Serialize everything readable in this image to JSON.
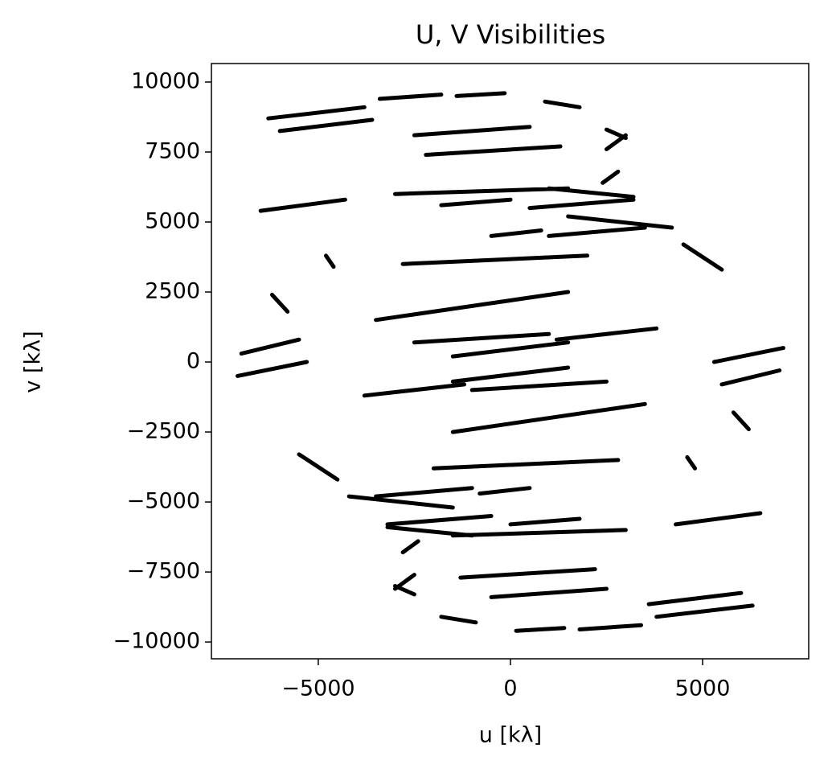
{
  "chart_data": {
    "type": "line",
    "title": "U, V Visibilities",
    "x_label": "u [kλ]",
    "y_label": "v [kλ]",
    "color": "#000000",
    "xlim": [
      -7780,
      7760
    ],
    "ylim": [
      -10600,
      10660
    ],
    "xticks": [
      {
        "value": -5000,
        "label": "−5000"
      },
      0,
      5000
    ],
    "yticks": [
      {
        "value": -10000,
        "label": "−10000"
      },
      {
        "value": -7500,
        "label": "−7500"
      },
      {
        "value": -5000,
        "label": "−5000"
      },
      {
        "value": -2500,
        "label": "−2500"
      },
      0,
      2500,
      5000,
      7500,
      10000
    ],
    "x": [
      -6300,
      -3800,
      null,
      -6000,
      -3600,
      null,
      -3400,
      -1800,
      null,
      -1400,
      -150,
      null,
      -2500,
      500,
      null,
      -2200,
      1300,
      null,
      900,
      1800,
      null,
      2500,
      3000,
      null,
      -6500,
      -4300,
      null,
      -7000,
      -5500,
      null,
      -7100,
      -5300,
      null,
      -4800,
      -4600,
      null,
      -6200,
      -5800,
      null,
      -3000,
      1500,
      null,
      1000,
      3200,
      null,
      1500,
      4200,
      null,
      -2800,
      2000,
      null,
      -3500,
      1500,
      null,
      -1500,
      1500,
      null,
      -1000,
      2500,
      null,
      -3800,
      -1200,
      null,
      -5500,
      -4500,
      null,
      -3500,
      -1000,
      null,
      -3200,
      -500,
      null,
      -2800,
      -2400,
      null,
      -3000,
      -2500,
      null,
      -500,
      800,
      null,
      -1800,
      0,
      null,
      6300,
      3800,
      null,
      6000,
      3600,
      null,
      3400,
      1800,
      null,
      1400,
      150,
      null,
      2500,
      -500,
      null,
      2200,
      -1300,
      null,
      -900,
      -1800,
      null,
      -2500,
      -3000,
      null,
      6500,
      4300,
      null,
      7000,
      5500,
      null,
      7100,
      5300,
      null,
      4800,
      4600,
      null,
      6200,
      5800,
      null,
      3000,
      -1500,
      null,
      -1000,
      -3200,
      null,
      -1500,
      -4200,
      null,
      2800,
      -2000,
      null,
      3500,
      -1500,
      null,
      1500,
      -1500,
      null,
      1000,
      -2500,
      null,
      3800,
      1200,
      null,
      5500,
      4500,
      null,
      3500,
      1000,
      null,
      3200,
      500,
      null,
      2800,
      2400,
      null,
      3000,
      2500,
      null,
      500,
      -800,
      null,
      1800,
      0
    ],
    "y": [
      8700,
      9100,
      null,
      8250,
      8650,
      null,
      9400,
      9550,
      null,
      9500,
      9600,
      null,
      8100,
      8400,
      null,
      7400,
      7700,
      null,
      9300,
      9100,
      null,
      8300,
      8000,
      null,
      5400,
      5800,
      null,
      300,
      800,
      null,
      -500,
      0,
      null,
      3800,
      3400,
      null,
      2400,
      1800,
      null,
      6000,
      6200,
      null,
      6200,
      5900,
      null,
      5200,
      4800,
      null,
      3500,
      3800,
      null,
      1500,
      2500,
      null,
      200,
      700,
      null,
      -1000,
      -700,
      null,
      -1200,
      -800,
      null,
      -3300,
      -4200,
      null,
      -4800,
      -4500,
      null,
      -5800,
      -5500,
      null,
      -6800,
      -6400,
      null,
      -8100,
      -7600,
      null,
      4500,
      4700,
      null,
      5600,
      5800,
      null,
      -8700,
      -9100,
      null,
      -8250,
      -8650,
      null,
      -9400,
      -9550,
      null,
      -9500,
      -9600,
      null,
      -8100,
      -8400,
      null,
      -7400,
      -7700,
      null,
      -9300,
      -9100,
      null,
      -8300,
      -8000,
      null,
      -5400,
      -5800,
      null,
      -300,
      -800,
      null,
      500,
      0,
      null,
      -3800,
      -3400,
      null,
      -2400,
      -1800,
      null,
      -6000,
      -6200,
      null,
      -6200,
      -5900,
      null,
      -5200,
      -4800,
      null,
      -3500,
      -3800,
      null,
      -1500,
      -2500,
      null,
      -200,
      -700,
      null,
      1000,
      700,
      null,
      1200,
      800,
      null,
      3300,
      4200,
      null,
      4800,
      4500,
      null,
      5800,
      5500,
      null,
      6800,
      6400,
      null,
      8100,
      7600,
      null,
      -4500,
      -4700,
      null,
      -5600,
      -5800
    ]
  }
}
